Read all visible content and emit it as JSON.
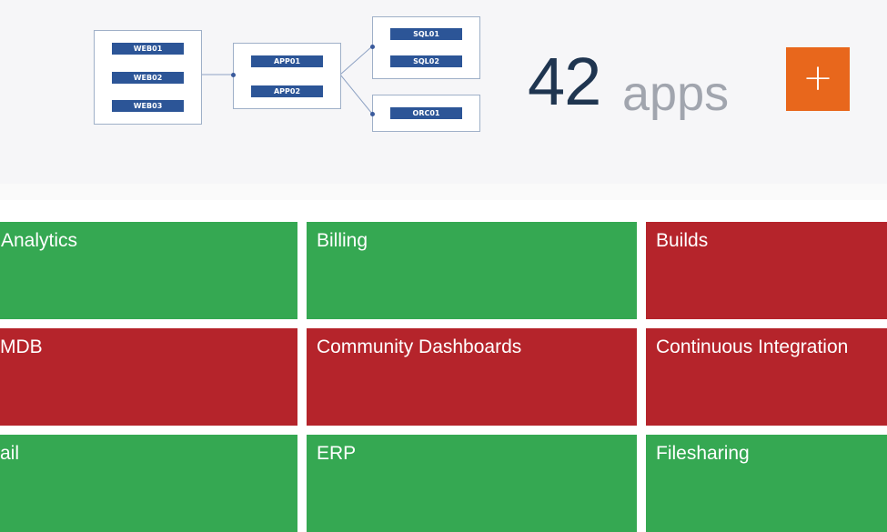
{
  "diagram": {
    "web_tier": [
      "WEB01",
      "WEB02",
      "WEB03"
    ],
    "app_tier": [
      "APP01",
      "APP02"
    ],
    "sql_tier": [
      "SQL01",
      "SQL02"
    ],
    "oracle_tier": [
      "ORC01"
    ]
  },
  "summary": {
    "count": "42",
    "unit": "apps"
  },
  "add_button": {
    "label": "+",
    "color": "#e8671c"
  },
  "colors": {
    "ok": "#35a852",
    "error": "#b5242b",
    "server": "#2c5597"
  },
  "tiles": [
    {
      "label": "Analytics",
      "status": "ok"
    },
    {
      "label": "Billing",
      "status": "ok"
    },
    {
      "label": "Builds",
      "status": "error"
    },
    {
      "label": "MDB",
      "status": "error"
    },
    {
      "label": "Community Dashboards",
      "status": "error"
    },
    {
      "label": "Continuous Integration",
      "status": "error"
    },
    {
      "label": "ail",
      "status": "ok"
    },
    {
      "label": "ERP",
      "status": "ok"
    },
    {
      "label": "Filesharing",
      "status": "ok"
    }
  ]
}
